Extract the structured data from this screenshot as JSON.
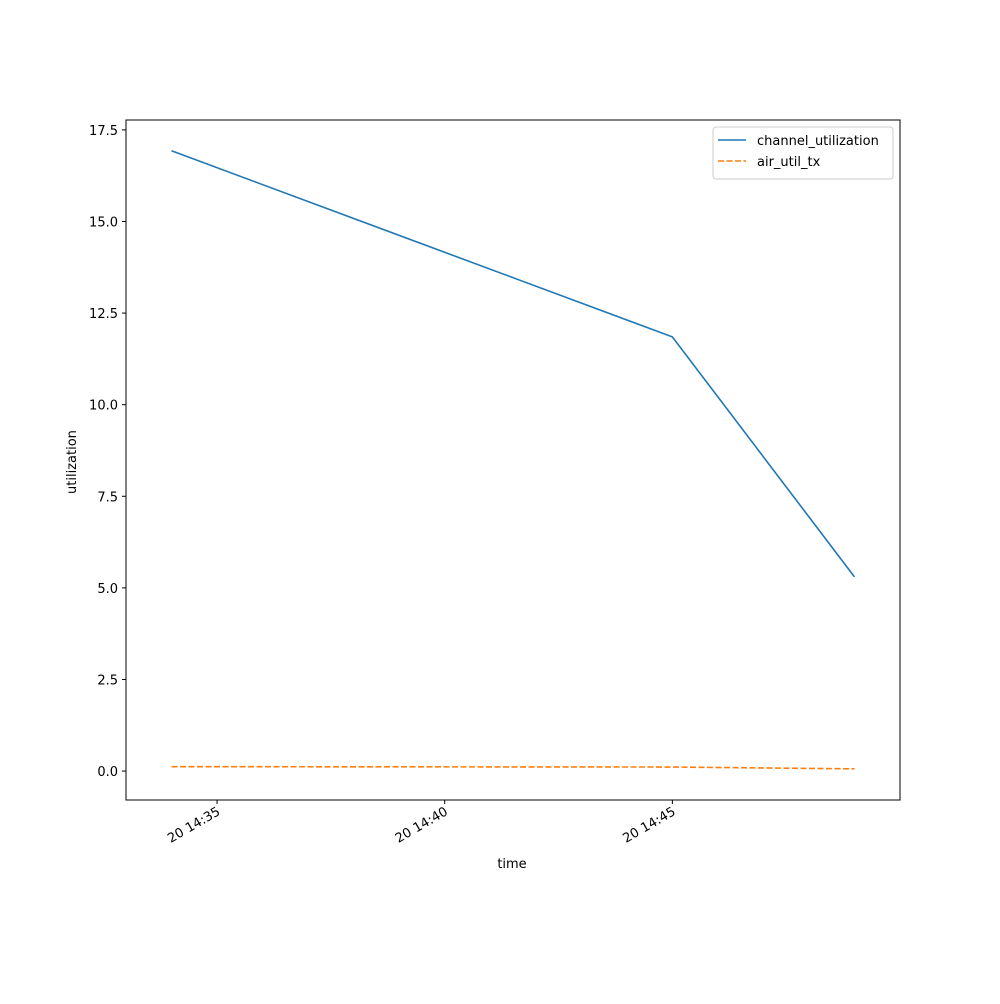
{
  "chart_data": {
    "type": "line",
    "x_label": "time",
    "y_label": "utilization",
    "x": [
      "20 14:34",
      "20 14:45",
      "20 14:49"
    ],
    "series": [
      {
        "name": "channel_utilization",
        "color": "#1f77b4",
        "linestyle": "solid",
        "values": [
          16.93,
          11.85,
          5.3
        ]
      },
      {
        "name": "air_util_tx",
        "color": "#ff7f0e",
        "linestyle": "dashed",
        "values": [
          0.12,
          0.11,
          0.06
        ]
      }
    ],
    "xlim": [
      "20 14:33",
      "20 14:50"
    ],
    "xticks": [
      "20 14:35",
      "20 14:40",
      "20 14:45"
    ],
    "ylim": [
      -0.79,
      17.77
    ],
    "yticks": [
      {
        "value": 0,
        "label": "0.0"
      },
      {
        "value": 2.5,
        "label": "2.5"
      },
      {
        "value": 5,
        "label": "5.0"
      },
      {
        "value": 7.5,
        "label": "7.5"
      },
      {
        "value": 10,
        "label": "10.0"
      },
      {
        "value": 12.5,
        "label": "12.5"
      },
      {
        "value": 15,
        "label": "15.0"
      },
      {
        "value": 17.5,
        "label": "17.5"
      }
    ],
    "grid": false,
    "legend": "upper right"
  }
}
